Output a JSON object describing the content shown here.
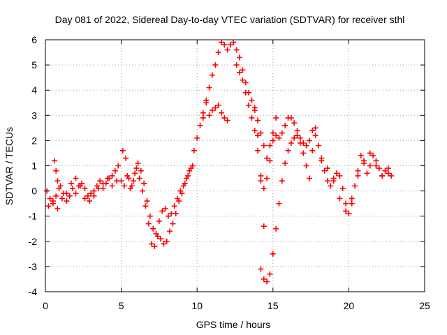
{
  "chart_data": {
    "type": "scatter",
    "title": "Day 081 of 2022, Sidereal Day-to-day VTEC variation (SDTVAR) for receiver sthl",
    "xlabel": "GPS time / hours",
    "ylabel": "SDTVAR / TECUs",
    "xlim": [
      0,
      25
    ],
    "ylim": [
      -4,
      6
    ],
    "xticks": [
      "0",
      "5",
      "10",
      "15",
      "20",
      "25"
    ],
    "yticks": [
      "-4",
      "-3",
      "-2",
      "-1",
      "0",
      "1",
      "2",
      "3",
      "4",
      "5",
      "6"
    ],
    "grid": true,
    "marker": "+",
    "series": [
      {
        "name": "SDTVAR",
        "color": "#ff0000",
        "x": [
          0.1,
          0.3,
          0.5,
          0.7,
          0.9,
          1.0,
          1.2,
          1.4,
          1.6,
          1.8,
          2.0,
          2.2,
          2.4,
          2.6,
          2.8,
          3.0,
          3.2,
          3.4,
          3.6,
          3.8,
          4.0,
          4.2,
          4.4,
          4.6,
          4.8,
          0.2,
          0.5,
          0.8,
          1.1,
          1.4,
          1.7,
          2.0,
          2.3,
          2.6,
          2.9,
          3.2,
          3.5,
          3.8,
          4.1,
          4.4,
          4.7,
          0.6,
          0.7,
          0.8,
          5.0,
          5.1,
          5.3,
          5.5,
          5.7,
          5.9,
          6.1,
          6.3,
          6.5,
          6.7,
          6.9,
          7.1,
          7.3,
          7.5,
          7.7,
          7.9,
          8.1,
          8.3,
          8.5,
          8.7,
          8.9,
          9.1,
          9.3,
          9.5,
          9.7,
          5.2,
          5.4,
          5.6,
          5.8,
          6.0,
          6.2,
          6.4,
          6.6,
          6.8,
          7.0,
          7.2,
          7.4,
          7.6,
          7.8,
          8.0,
          8.2,
          8.4,
          8.6,
          8.8,
          9.0,
          9.2,
          9.4,
          9.6,
          9.8,
          10.0,
          10.2,
          10.4,
          10.6,
          10.8,
          11.0,
          11.2,
          11.4,
          11.6,
          11.8,
          12.0,
          12.2,
          12.4,
          12.6,
          12.8,
          13.0,
          13.2,
          13.4,
          13.6,
          13.8,
          14.0,
          14.2,
          14.4,
          10.4,
          10.6,
          10.8,
          11.0,
          11.2,
          11.4,
          11.6,
          11.8,
          12.0,
          12.6,
          12.8,
          13.0,
          13.2,
          13.4,
          13.6,
          13.8,
          14.0,
          14.2,
          14.4,
          14.6,
          14.8,
          15.0,
          15.2,
          15.4,
          15.6,
          15.8,
          16.0,
          16.2,
          16.4,
          16.6,
          16.8,
          17.0,
          17.2,
          17.4,
          17.6,
          14.2,
          14.4,
          14.6,
          14.8,
          15.0,
          15.2,
          15.4,
          15.6,
          15.8,
          16.0,
          16.2,
          16.4,
          16.6,
          16.8,
          17.0,
          17.2,
          17.4,
          17.6,
          17.8,
          13.8,
          14.0,
          14.2,
          14.4,
          14.6,
          14.8,
          15.0,
          15.2,
          17.8,
          18.0,
          18.2,
          18.4,
          18.6,
          18.8,
          19.0,
          19.2,
          19.4,
          19.6,
          19.8,
          20.0,
          20.2,
          20.4,
          20.6,
          20.8,
          21.0,
          21.2,
          21.4,
          21.6,
          21.8,
          22.0,
          22.2,
          22.4,
          22.6,
          22.8,
          18.2,
          18.6,
          19.0,
          19.4,
          19.8,
          20.2,
          20.6,
          21.0,
          21.4,
          21.8,
          22.2,
          22.6
        ],
        "y": [
          0.0,
          -0.3,
          -0.5,
          -0.2,
          0.1,
          0.2,
          -0.1,
          -0.4,
          -0.2,
          0.1,
          -0.1,
          0.2,
          0.3,
          0.1,
          -0.2,
          -0.1,
          0.0,
          0.2,
          0.4,
          0.1,
          0.3,
          0.5,
          0.6,
          0.8,
          1.0,
          -0.6,
          -0.4,
          -0.7,
          -0.3,
          -0.1,
          0.3,
          0.5,
          0.2,
          -0.3,
          -0.4,
          -0.2,
          0.1,
          0.3,
          0.5,
          0.2,
          0.4,
          1.2,
          0.8,
          0.4,
          0.4,
          1.6,
          1.3,
          0.5,
          0.2,
          0.7,
          1.1,
          0.8,
          0.3,
          -0.4,
          -1.0,
          -1.5,
          -1.7,
          -1.2,
          -0.8,
          -0.7,
          -1.0,
          -0.9,
          -0.6,
          -0.3,
          0.0,
          0.2,
          0.5,
          0.8,
          1.0,
          0.2,
          0.6,
          0.1,
          0.4,
          0.9,
          0.5,
          0.0,
          -0.6,
          -1.3,
          -2.1,
          -2.2,
          -1.8,
          -1.9,
          -2.1,
          -2.0,
          -1.6,
          -1.3,
          -0.9,
          -0.4,
          -0.1,
          0.3,
          0.6,
          0.9,
          1.6,
          2.1,
          2.6,
          3.1,
          3.6,
          4.1,
          4.6,
          5.0,
          5.5,
          5.9,
          5.8,
          5.6,
          5.8,
          5.9,
          5.6,
          5.3,
          4.8,
          4.3,
          3.9,
          3.6,
          3.2,
          2.8,
          2.3,
          1.8,
          2.9,
          3.5,
          3.0,
          3.2,
          3.3,
          3.4,
          3.1,
          2.9,
          2.8,
          5.0,
          4.7,
          4.4,
          3.9,
          3.4,
          2.9,
          2.4,
          1.6,
          0.6,
          0.1,
          0.5,
          1.2,
          2.0,
          2.2,
          2.1,
          2.3,
          2.6,
          2.9,
          2.9,
          2.7,
          2.4,
          2.1,
          1.9,
          1.8,
          2.0,
          2.4,
          -3.1,
          -3.5,
          -3.6,
          -3.3,
          -2.5,
          -1.5,
          -0.5,
          0.4,
          1.1,
          1.6,
          1.9,
          2.1,
          2.2,
          1.9,
          1.5,
          1.0,
          0.5,
          1.6,
          2.2,
          3.3,
          2.2,
          0.4,
          -1.4,
          1.3,
          1.8,
          2.3,
          2.9,
          2.5,
          1.8,
          1.2,
          0.8,
          0.4,
          0.2,
          0.4,
          0.7,
          0.6,
          0.1,
          -0.5,
          -0.9,
          -0.5,
          0.2,
          0.8,
          1.4,
          1.2,
          0.7,
          1.0,
          1.4,
          1.2,
          0.9,
          0.6,
          0.8,
          0.7,
          0.6,
          1.3,
          0.9,
          0.5,
          -0.3,
          -0.8,
          -0.3,
          0.6,
          1.1,
          1.5,
          1.0,
          0.6,
          0.9
        ]
      }
    ]
  }
}
